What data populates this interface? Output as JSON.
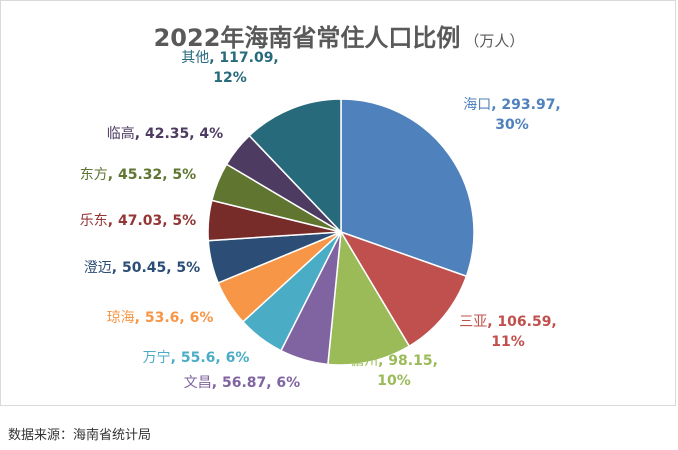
{
  "chart_data": {
    "type": "pie",
    "title": "2022年海南省常住人口比例",
    "unit": "（万人）",
    "slices": [
      {
        "name": "海口",
        "value": 293.97,
        "percent": "30%",
        "color": "#4f81bd",
        "label_color": "#4f81bd"
      },
      {
        "name": "三亚",
        "value": 106.59,
        "percent": "11%",
        "color": "#c0504d",
        "label_color": "#c0504d"
      },
      {
        "name": "儋州",
        "value": 98.15,
        "percent": "10%",
        "color": "#9bbb59",
        "label_color": "#9bbb59"
      },
      {
        "name": "文昌",
        "value": 56.87,
        "percent": "6%",
        "color": "#8064a2",
        "label_color": "#8064a2"
      },
      {
        "name": "万宁",
        "value": 55.6,
        "percent": "6%",
        "color": "#4bacc6",
        "label_color": "#4bacc6"
      },
      {
        "name": "琼海",
        "value": 53.6,
        "percent": "6%",
        "color": "#f79646",
        "label_color": "#f79646"
      },
      {
        "name": "澄迈",
        "value": 50.45,
        "percent": "5%",
        "color": "#2c4d75",
        "label_color": "#2c4d75"
      },
      {
        "name": "乐东",
        "value": 47.03,
        "percent": "5%",
        "color": "#772c2a",
        "label_color": "#943634"
      },
      {
        "name": "东方",
        "value": 45.32,
        "percent": "5%",
        "color": "#5f7530",
        "label_color": "#5f7530"
      },
      {
        "name": "临高",
        "value": 42.35,
        "percent": "4%",
        "color": "#4d3b62",
        "label_color": "#4d3b62"
      },
      {
        "name": "其他",
        "value": 117.09,
        "percent": "12%",
        "color": "#276a7c",
        "label_color": "#276a7c"
      }
    ]
  },
  "source": "数据来源：海南省统计局"
}
